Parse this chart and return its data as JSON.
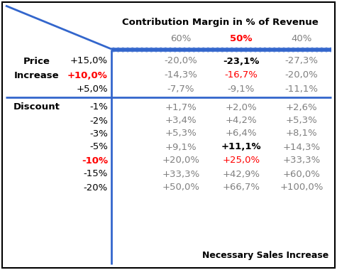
{
  "title": "Contribution Margin in % of Revenue",
  "col_headers": [
    "60%",
    "50%",
    "40%"
  ],
  "col_header_colors": [
    "#808080",
    "#FF0000",
    "#808080"
  ],
  "footer": "Necessary Sales Increase",
  "row_label1_col1": [
    "Price",
    "Increase",
    ""
  ],
  "row_label1_col2": [
    "+15,0%",
    "+10,0%",
    "+5,0%"
  ],
  "row_label1_col2_colors": [
    "#000000",
    "#FF0000",
    "#000000"
  ],
  "row_label2_col2": [
    "-1%",
    "-2%",
    "-3%",
    "-5%",
    "-10%",
    "-15%",
    "-20%"
  ],
  "row_label2_col2_colors": [
    "#000000",
    "#000000",
    "#000000",
    "#000000",
    "#FF0000",
    "#000000",
    "#000000"
  ],
  "data_top": [
    [
      "-20,0%",
      "-23,1%",
      "-27,3%"
    ],
    [
      "-14,3%",
      "-16,7%",
      "-20,0%"
    ],
    [
      "-7,7%",
      "-9,1%",
      "-11,1%"
    ]
  ],
  "data_top_colors": [
    [
      "#808080",
      "#000000",
      "#808080"
    ],
    [
      "#808080",
      "#FF0000",
      "#808080"
    ],
    [
      "#808080",
      "#808080",
      "#808080"
    ]
  ],
  "data_bot": [
    [
      "+1,7%",
      "+2,0%",
      "+2,6%"
    ],
    [
      "+3,4%",
      "+4,2%",
      "+5,3%"
    ],
    [
      "+5,3%",
      "+6,4%",
      "+8,1%"
    ],
    [
      "+9,1%",
      "+11,1%",
      "+14,3%"
    ],
    [
      "+20,0%",
      "+25,0%",
      "+33,3%"
    ],
    [
      "+33,3%",
      "+42,9%",
      "+60,0%"
    ],
    [
      "+50,0%",
      "+66,7%",
      "+100,0%"
    ]
  ],
  "data_bot_colors": [
    [
      "#808080",
      "#808080",
      "#808080"
    ],
    [
      "#808080",
      "#808080",
      "#808080"
    ],
    [
      "#808080",
      "#808080",
      "#808080"
    ],
    [
      "#808080",
      "#000000",
      "#808080"
    ],
    [
      "#808080",
      "#FF0000",
      "#808080"
    ],
    [
      "#808080",
      "#808080",
      "#808080"
    ],
    [
      "#808080",
      "#808080",
      "#808080"
    ]
  ],
  "blue": "#3366CC",
  "bg": "#FFFFFF"
}
